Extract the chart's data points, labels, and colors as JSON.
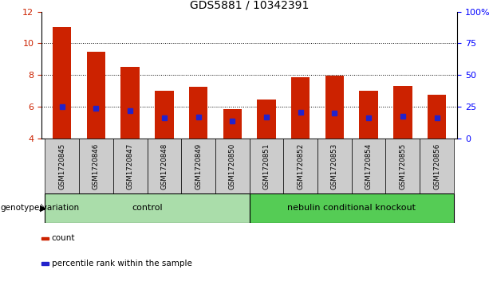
{
  "title": "GDS5881 / 10342391",
  "samples": [
    "GSM1720845",
    "GSM1720846",
    "GSM1720847",
    "GSM1720848",
    "GSM1720849",
    "GSM1720850",
    "GSM1720851",
    "GSM1720852",
    "GSM1720853",
    "GSM1720854",
    "GSM1720855",
    "GSM1720856"
  ],
  "bar_values": [
    11.0,
    9.45,
    8.5,
    7.0,
    7.25,
    5.85,
    6.45,
    7.85,
    7.95,
    7.0,
    7.3,
    6.75
  ],
  "percentile_values": [
    6.0,
    5.9,
    5.75,
    5.3,
    5.35,
    5.1,
    5.35,
    5.65,
    5.6,
    5.3,
    5.4,
    5.3
  ],
  "bar_bottom": 4.0,
  "ylim_left": [
    4,
    12
  ],
  "ylim_right": [
    0,
    100
  ],
  "yticks_left": [
    4,
    6,
    8,
    10,
    12
  ],
  "yticks_right": [
    0,
    25,
    50,
    75,
    100
  ],
  "ytick_labels_right": [
    "0",
    "25",
    "50",
    "75",
    "100%"
  ],
  "bar_color": "#cc2200",
  "percentile_color": "#2222cc",
  "bar_width": 0.55,
  "groups": [
    {
      "label": "control",
      "start": 0,
      "end": 6,
      "color": "#aaddaa"
    },
    {
      "label": "nebulin conditional knockout",
      "start": 6,
      "end": 12,
      "color": "#55cc55"
    }
  ],
  "group_label_prefix": "genotype/variation",
  "legend_items": [
    {
      "label": "count",
      "color": "#cc2200"
    },
    {
      "label": "percentile rank within the sample",
      "color": "#2222cc"
    }
  ],
  "tick_label_bg": "#cccccc",
  "gridline_ticks": [
    6,
    8,
    10
  ],
  "fig_width": 6.13,
  "fig_height": 3.63,
  "dpi": 100
}
